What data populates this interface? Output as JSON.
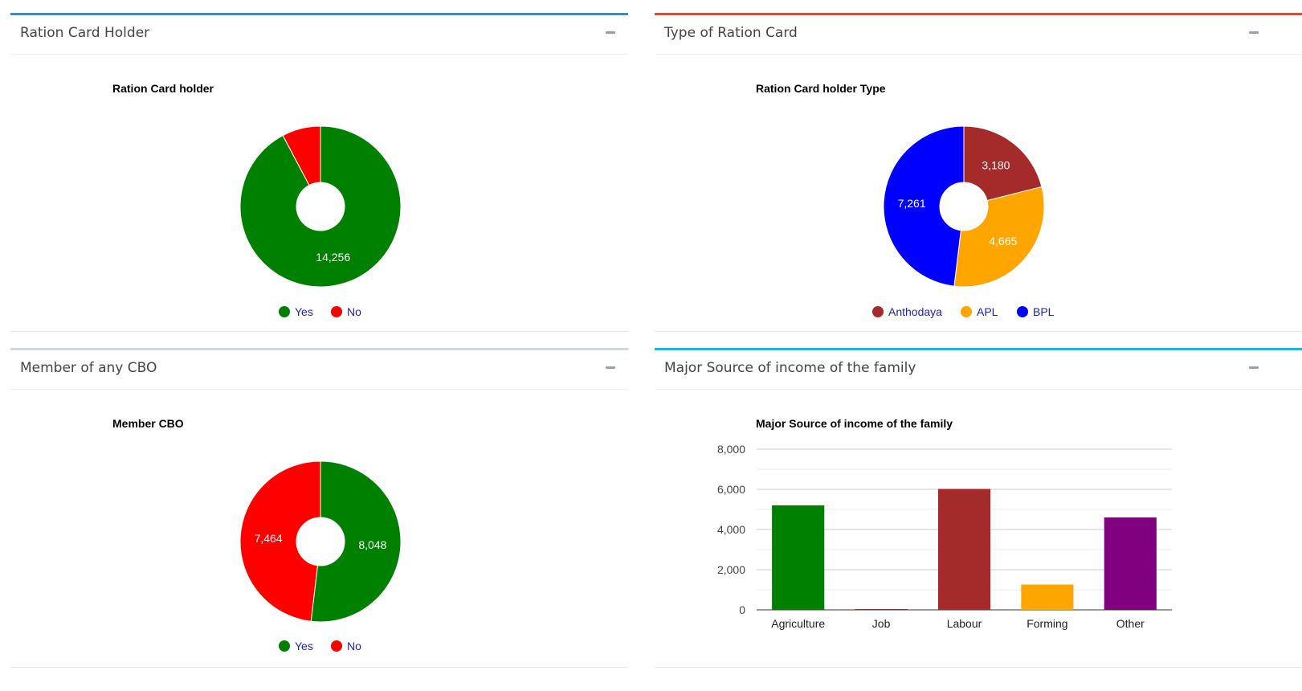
{
  "panels": {
    "ration_card_holder": {
      "title": "Ration Card Holder",
      "chart_title": "Ration Card holder"
    },
    "type_of_ration_card": {
      "title": "Type of Ration Card",
      "chart_title": "Ration Card holder Type"
    },
    "member_cbo": {
      "title": "Member of any CBO",
      "chart_title": "Member CBO"
    },
    "income_source": {
      "title": "Major Source of income of the family",
      "chart_title": "Major Source of income of the family"
    }
  },
  "colors": {
    "green": "#008000",
    "red": "#ff0000",
    "brown": "#a52a2a",
    "orange": "#ffa500",
    "blue": "#0000ff",
    "purple": "#800080",
    "legend_text": "#2222aa"
  },
  "chart_data": [
    {
      "type": "pie",
      "donut": true,
      "title": "Ration Card holder",
      "labels": [
        "Yes",
        "No"
      ],
      "values": [
        14256,
        1200
      ],
      "value_labels": [
        "14,256",
        ""
      ],
      "colors": [
        "#008000",
        "#ff0000"
      ],
      "legend_position": "bottom"
    },
    {
      "type": "pie",
      "donut": true,
      "title": "Ration Card holder Type",
      "labels": [
        "Anthodaya",
        "APL",
        "BPL"
      ],
      "values": [
        3180,
        4665,
        7261
      ],
      "value_labels": [
        "3,180",
        "4,665",
        "7,261"
      ],
      "colors": [
        "#a52a2a",
        "#ffa500",
        "#0000ff"
      ],
      "legend_position": "bottom"
    },
    {
      "type": "pie",
      "donut": true,
      "title": "Member CBO",
      "labels": [
        "Yes",
        "No"
      ],
      "values": [
        8048,
        7464
      ],
      "value_labels": [
        "8,048",
        "7,464"
      ],
      "colors": [
        "#008000",
        "#ff0000"
      ],
      "legend_position": "bottom"
    },
    {
      "type": "bar",
      "title": "Major Source of income of the family",
      "categories": [
        "Agriculture",
        "Job",
        "Labour",
        "Forming",
        "Other"
      ],
      "values": [
        5200,
        40,
        6020,
        1260,
        4600
      ],
      "colors": [
        "#008000",
        "#a52a2a",
        "#a52a2a",
        "#ffa500",
        "#800080"
      ],
      "ylim": [
        0,
        8000
      ],
      "yticks": [
        "0",
        "2,000",
        "4,000",
        "6,000",
        "8,000"
      ],
      "grid": true,
      "legend": "none"
    }
  ]
}
